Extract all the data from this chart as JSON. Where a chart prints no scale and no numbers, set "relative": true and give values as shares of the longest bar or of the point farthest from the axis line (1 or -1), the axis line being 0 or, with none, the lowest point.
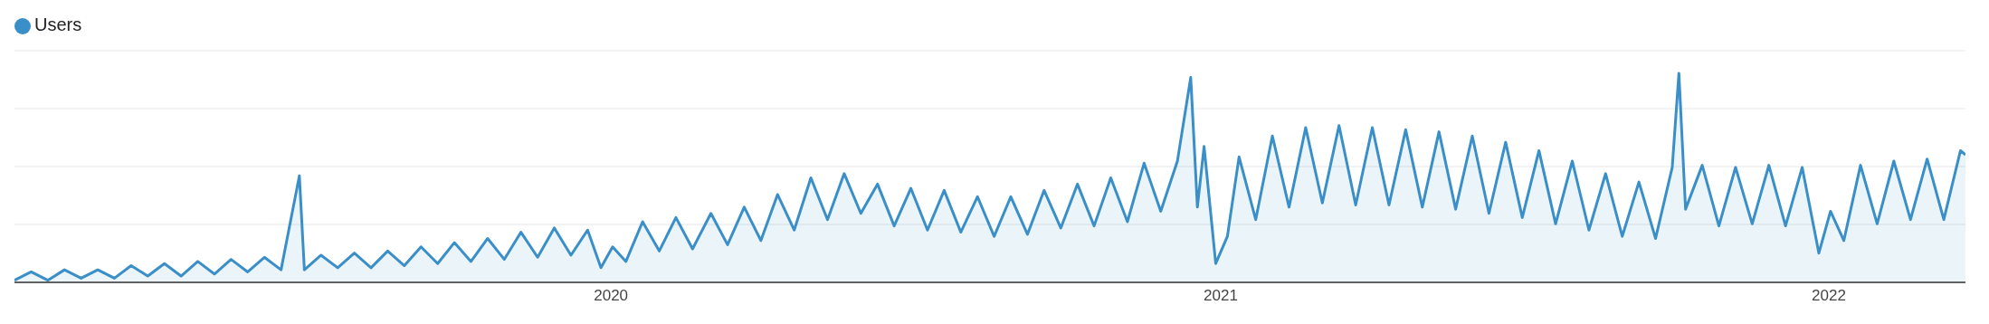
{
  "chart_data": {
    "type": "area",
    "relative": true,
    "legend": "top left",
    "grid": "y",
    "marker": "none",
    "line_style": "solid",
    "xlim": [
      "2019-01-08",
      "2022-03-24"
    ],
    "xticks": [
      "2020",
      "2021",
      "2022"
    ],
    "x": [
      "2019-01-08",
      "2019-01-18",
      "2019-01-28",
      "2019-02-07",
      "2019-02-17",
      "2019-02-27",
      "2019-03-09",
      "2019-03-19",
      "2019-03-29",
      "2019-04-08",
      "2019-04-18",
      "2019-04-28",
      "2019-05-08",
      "2019-05-18",
      "2019-05-28",
      "2019-06-07",
      "2019-06-17",
      "2019-06-28",
      "2019-07-01",
      "2019-07-11",
      "2019-07-21",
      "2019-07-31",
      "2019-08-10",
      "2019-08-20",
      "2019-08-30",
      "2019-09-09",
      "2019-09-19",
      "2019-09-29",
      "2019-10-09",
      "2019-10-19",
      "2019-10-29",
      "2019-11-08",
      "2019-11-18",
      "2019-11-28",
      "2019-12-08",
      "2019-12-18",
      "2019-12-26",
      "2020-01-02",
      "2020-01-10",
      "2020-01-20",
      "2020-01-30",
      "2020-02-09",
      "2020-02-19",
      "2020-03-01",
      "2020-03-11",
      "2020-03-21",
      "2020-03-31",
      "2020-04-10",
      "2020-04-20",
      "2020-04-30",
      "2020-05-10",
      "2020-05-20",
      "2020-05-30",
      "2020-06-09",
      "2020-06-19",
      "2020-06-29",
      "2020-07-09",
      "2020-07-19",
      "2020-07-29",
      "2020-08-08",
      "2020-08-18",
      "2020-08-28",
      "2020-09-07",
      "2020-09-17",
      "2020-09-27",
      "2020-10-07",
      "2020-10-17",
      "2020-10-27",
      "2020-11-06",
      "2020-11-16",
      "2020-11-26",
      "2020-12-06",
      "2020-12-14",
      "2020-12-18",
      "2020-12-22",
      "2020-12-29",
      "2021-01-05",
      "2021-01-12",
      "2021-01-22",
      "2021-02-01",
      "2021-02-11",
      "2021-02-21",
      "2021-03-03",
      "2021-03-13",
      "2021-03-23",
      "2021-04-02",
      "2021-04-12",
      "2021-04-22",
      "2021-05-02",
      "2021-05-12",
      "2021-05-22",
      "2021-06-01",
      "2021-06-11",
      "2021-06-21",
      "2021-07-01",
      "2021-07-11",
      "2021-07-21",
      "2021-07-31",
      "2021-08-10",
      "2021-08-20",
      "2021-08-30",
      "2021-09-09",
      "2021-09-19",
      "2021-09-29",
      "2021-10-03",
      "2021-10-07",
      "2021-10-17",
      "2021-10-27",
      "2021-11-06",
      "2021-11-16",
      "2021-11-26",
      "2021-12-06",
      "2021-12-16",
      "2021-12-26",
      "2022-01-02",
      "2022-01-10",
      "2022-01-20",
      "2022-01-30",
      "2022-02-09",
      "2022-02-19",
      "2022-03-01",
      "2022-03-11",
      "2022-03-21",
      "2022-03-24"
    ],
    "series": [
      {
        "name": "Users",
        "color": "#3a8fc8",
        "values": [
          0.01,
          0.05,
          0.01,
          0.06,
          0.02,
          0.06,
          0.02,
          0.08,
          0.03,
          0.09,
          0.03,
          0.1,
          0.04,
          0.11,
          0.05,
          0.12,
          0.06,
          0.51,
          0.06,
          0.13,
          0.07,
          0.14,
          0.07,
          0.15,
          0.08,
          0.17,
          0.09,
          0.19,
          0.1,
          0.21,
          0.11,
          0.24,
          0.12,
          0.26,
          0.13,
          0.25,
          0.07,
          0.17,
          0.1,
          0.29,
          0.15,
          0.31,
          0.16,
          0.33,
          0.18,
          0.36,
          0.2,
          0.42,
          0.25,
          0.5,
          0.3,
          0.52,
          0.33,
          0.47,
          0.27,
          0.45,
          0.25,
          0.44,
          0.24,
          0.41,
          0.22,
          0.41,
          0.23,
          0.44,
          0.26,
          0.47,
          0.27,
          0.5,
          0.29,
          0.57,
          0.34,
          0.58,
          0.98,
          0.36,
          0.65,
          0.09,
          0.22,
          0.6,
          0.3,
          0.7,
          0.36,
          0.74,
          0.38,
          0.75,
          0.37,
          0.74,
          0.37,
          0.73,
          0.36,
          0.72,
          0.35,
          0.7,
          0.33,
          0.67,
          0.31,
          0.63,
          0.28,
          0.58,
          0.25,
          0.52,
          0.22,
          0.48,
          0.21,
          0.55,
          1.0,
          0.35,
          0.56,
          0.27,
          0.55,
          0.28,
          0.56,
          0.27,
          0.55,
          0.14,
          0.34,
          0.2,
          0.56,
          0.28,
          0.58,
          0.3,
          0.59,
          0.3,
          0.63,
          0.61
        ]
      }
    ]
  }
}
